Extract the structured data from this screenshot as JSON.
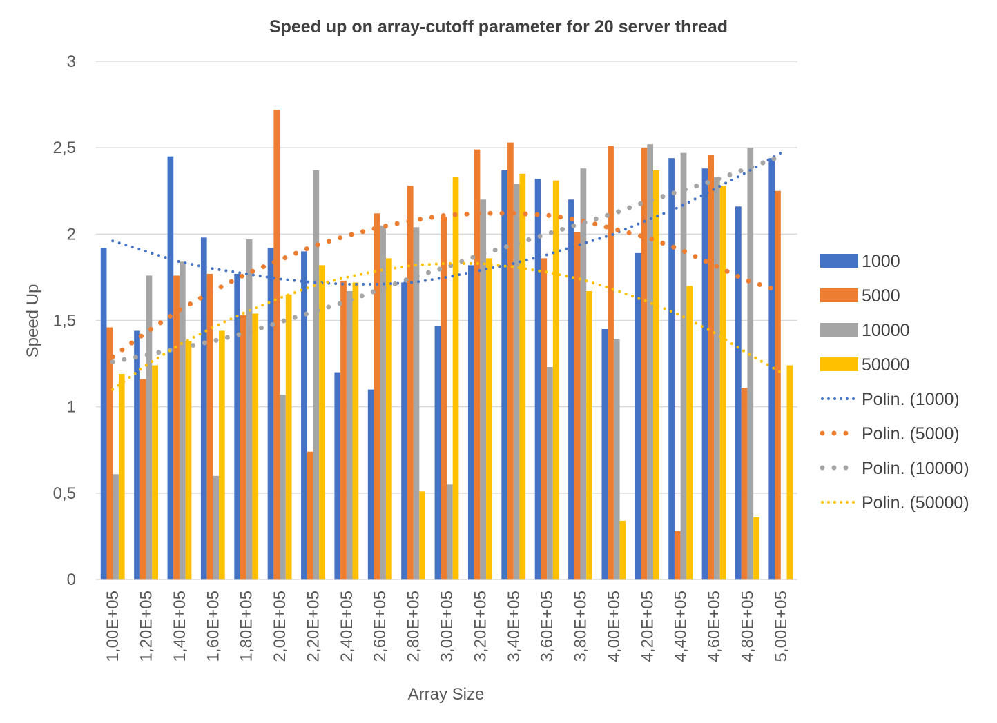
{
  "chart_data": {
    "type": "bar",
    "title": "Speed up on array-cutoff parameter for 20 server thread",
    "xlabel": "Array Size",
    "ylabel": "Speed Up",
    "ylim": [
      0,
      3
    ],
    "y_ticks": [
      "0",
      "0,5",
      "1",
      "1,5",
      "2",
      "2,5",
      "3"
    ],
    "categories": [
      "1,00E+05",
      "1,20E+05",
      "1,40E+05",
      "1,60E+05",
      "1,80E+05",
      "2,00E+05",
      "2,20E+05",
      "2,40E+05",
      "2,60E+05",
      "2,80E+05",
      "3,00E+05",
      "3,20E+05",
      "3,40E+05",
      "3,60E+05",
      "3,80E+05",
      "4,00E+05",
      "4,20E+05",
      "4,40E+05",
      "4,60E+05",
      "4,80E+05",
      "5,00E+05"
    ],
    "grid": true,
    "legend_position": "right",
    "series": [
      {
        "name": "1000",
        "color": "#4472C4",
        "values": [
          1.92,
          1.44,
          2.45,
          1.98,
          1.77,
          1.92,
          1.9,
          1.2,
          1.1,
          1.72,
          1.47,
          1.82,
          2.37,
          2.32,
          2.2,
          1.45,
          1.89,
          2.44,
          2.38,
          2.16,
          2.44
        ]
      },
      {
        "name": "5000",
        "color": "#ED7D31",
        "values": [
          1.46,
          1.16,
          1.76,
          1.77,
          1.53,
          2.72,
          0.74,
          1.73,
          2.12,
          2.28,
          2.1,
          2.49,
          2.53,
          1.86,
          2.01,
          2.51,
          2.5,
          0.28,
          2.46,
          1.11,
          2.25
        ]
      },
      {
        "name": "10000",
        "color": "#A5A5A5",
        "values": [
          0.61,
          1.76,
          1.84,
          0.6,
          1.97,
          1.07,
          2.37,
          1.67,
          2.05,
          2.04,
          0.55,
          2.2,
          2.29,
          1.23,
          2.38,
          1.39,
          2.52,
          2.47,
          2.33,
          2.5,
          0
        ]
      },
      {
        "name": "50000",
        "color": "#FFC000",
        "values": [
          1.19,
          1.24,
          1.38,
          1.44,
          1.54,
          1.65,
          1.82,
          1.72,
          1.86,
          0.51,
          2.33,
          1.86,
          2.35,
          2.31,
          1.67,
          0.34,
          2.37,
          1.7,
          2.28,
          0.36,
          1.24
        ]
      }
    ],
    "trendlines": [
      {
        "name": "Polin. (1000)",
        "color": "#4472C4",
        "dot": "small",
        "values": [
          1.96,
          1.9,
          1.84,
          1.8,
          1.77,
          1.74,
          1.72,
          1.71,
          1.71,
          1.72,
          1.75,
          1.79,
          1.83,
          1.88,
          1.94,
          2.0,
          2.08,
          2.16,
          2.26,
          2.36,
          2.47
        ]
      },
      {
        "name": "Polin. (5000)",
        "color": "#ED7D31",
        "dot": "large",
        "values": [
          1.29,
          1.43,
          1.56,
          1.67,
          1.77,
          1.85,
          1.93,
          1.99,
          2.04,
          2.08,
          2.11,
          2.12,
          2.12,
          2.11,
          2.08,
          2.03,
          1.98,
          1.91,
          1.82,
          1.73,
          1.67
        ]
      },
      {
        "name": "Polin. (10000)",
        "color": "#A5A5A5",
        "dot": "large",
        "values": [
          1.26,
          1.3,
          1.34,
          1.38,
          1.43,
          1.49,
          1.55,
          1.61,
          1.68,
          1.75,
          1.81,
          1.88,
          1.94,
          2.0,
          2.06,
          2.12,
          2.19,
          2.25,
          2.31,
          2.38,
          2.45
        ]
      },
      {
        "name": "Polin. (50000)",
        "color": "#FFC000",
        "dot": "small",
        "values": [
          1.1,
          1.24,
          1.36,
          1.46,
          1.55,
          1.63,
          1.7,
          1.75,
          1.79,
          1.82,
          1.83,
          1.83,
          1.81,
          1.78,
          1.74,
          1.68,
          1.61,
          1.53,
          1.43,
          1.31,
          1.2
        ]
      }
    ]
  }
}
